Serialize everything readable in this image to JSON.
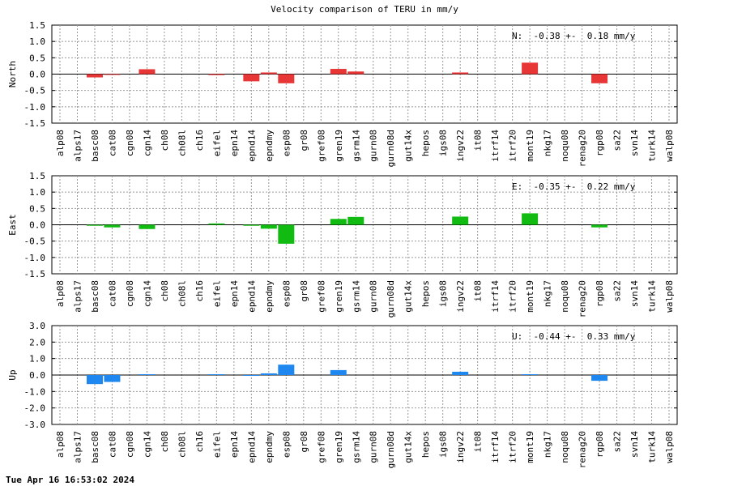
{
  "title": "Velocity comparison of TERU in mm/y",
  "timestamp": "Tue Apr 16 16:53:02 2024",
  "chart_data": [
    {
      "type": "bar",
      "ylabel": "North",
      "ylim": [
        -1.5,
        1.5
      ],
      "yticks": [
        "1.5",
        "1.0",
        "0.5",
        "0.0",
        "-0.5",
        "-1.0",
        "-1.5"
      ],
      "ytick_values": [
        1.5,
        1.0,
        0.5,
        0.0,
        -0.5,
        -1.0,
        -1.5
      ],
      "grid": true,
      "color": "#e83535",
      "stat_label": "N:  -0.38 +-  0.18 mm/y",
      "categories": [
        "alp08",
        "alps17",
        "basc08",
        "cat08",
        "cgn08",
        "cgn14",
        "ch08",
        "ch08l",
        "ch16",
        "eifel",
        "epn14",
        "epnd14",
        "epndmy",
        "esp08",
        "gr08",
        "gref08",
        "gren19",
        "gsrm14",
        "gurn08",
        "gurn08d",
        "gut14x",
        "hepos",
        "igs08",
        "ingv22",
        "it08",
        "itrf14",
        "itrf20",
        "mont19",
        "nkg17",
        "noqu08",
        "renag20",
        "rgp08",
        "sa22",
        "svn14",
        "turk14",
        "walp08"
      ],
      "values": [
        0,
        0,
        -0.1,
        -0.02,
        0,
        0.15,
        0,
        0,
        0,
        -0.03,
        0,
        -0.22,
        0.05,
        -0.28,
        0,
        0,
        0.16,
        0.08,
        0,
        0,
        0,
        0,
        0,
        0.05,
        0,
        0,
        0,
        0.35,
        0,
        0,
        0,
        -0.28,
        0,
        0,
        0,
        0
      ]
    },
    {
      "type": "bar",
      "ylabel": "East",
      "ylim": [
        -1.5,
        1.5
      ],
      "yticks": [
        "1.5",
        "1.0",
        "0.5",
        "0.0",
        "-0.5",
        "-1.0",
        "-1.5"
      ],
      "ytick_values": [
        1.5,
        1.0,
        0.5,
        0.0,
        -0.5,
        -1.0,
        -1.5
      ],
      "grid": true,
      "color": "#11bb11",
      "stat_label": "E:  -0.35 +-  0.22 mm/y",
      "categories": [
        "alp08",
        "alps17",
        "basc08",
        "cat08",
        "cgn08",
        "cgn14",
        "ch08",
        "ch08l",
        "ch16",
        "eifel",
        "epn14",
        "epnd14",
        "epndmy",
        "esp08",
        "gr08",
        "gref08",
        "gren19",
        "gsrm14",
        "gurn08",
        "gurn08d",
        "gut14x",
        "hepos",
        "igs08",
        "ingv22",
        "it08",
        "itrf14",
        "itrf20",
        "mont19",
        "nkg17",
        "noqu08",
        "renag20",
        "rgp08",
        "sa22",
        "svn14",
        "turk14",
        "walp08"
      ],
      "values": [
        0,
        0,
        -0.03,
        -0.08,
        0,
        -0.13,
        0,
        0,
        0,
        0.04,
        0,
        -0.03,
        -0.12,
        -0.58,
        0,
        0,
        0.18,
        0.24,
        0,
        0,
        0,
        0,
        0,
        0.25,
        0,
        0,
        0,
        0.35,
        0,
        0,
        0,
        -0.08,
        0,
        0,
        0,
        0
      ]
    },
    {
      "type": "bar",
      "ylabel": "Up",
      "ylim": [
        -3.0,
        3.0
      ],
      "yticks": [
        "3.0",
        "2.0",
        "1.0",
        "0.0",
        "-1.0",
        "-2.0",
        "-3.0"
      ],
      "ytick_values": [
        3.0,
        2.0,
        1.0,
        0.0,
        -1.0,
        -2.0,
        -3.0
      ],
      "grid": true,
      "color": "#1e88f0",
      "stat_label": "U:  -0.44 +-  0.33 mm/y",
      "categories": [
        "alp08",
        "alps17",
        "basc08",
        "cat08",
        "cgn08",
        "cgn14",
        "ch08",
        "ch08l",
        "ch16",
        "eifel",
        "epn14",
        "epnd14",
        "epndmy",
        "esp08",
        "gr08",
        "gref08",
        "gren19",
        "gsrm14",
        "gurn08",
        "gurn08d",
        "gut14x",
        "hepos",
        "igs08",
        "ingv22",
        "it08",
        "itrf14",
        "itrf20",
        "mont19",
        "nkg17",
        "noqu08",
        "renag20",
        "rgp08",
        "sa22",
        "svn14",
        "turk14",
        "walp08"
      ],
      "values": [
        0,
        0,
        -0.55,
        -0.42,
        0,
        0.05,
        0,
        0,
        0,
        0.05,
        0,
        -0.05,
        0.1,
        0.63,
        0,
        0,
        0.3,
        0,
        0,
        0,
        0,
        0,
        0,
        0.2,
        0,
        0,
        0,
        0.05,
        0,
        0,
        0,
        -0.35,
        0,
        0,
        0,
        0
      ]
    }
  ]
}
